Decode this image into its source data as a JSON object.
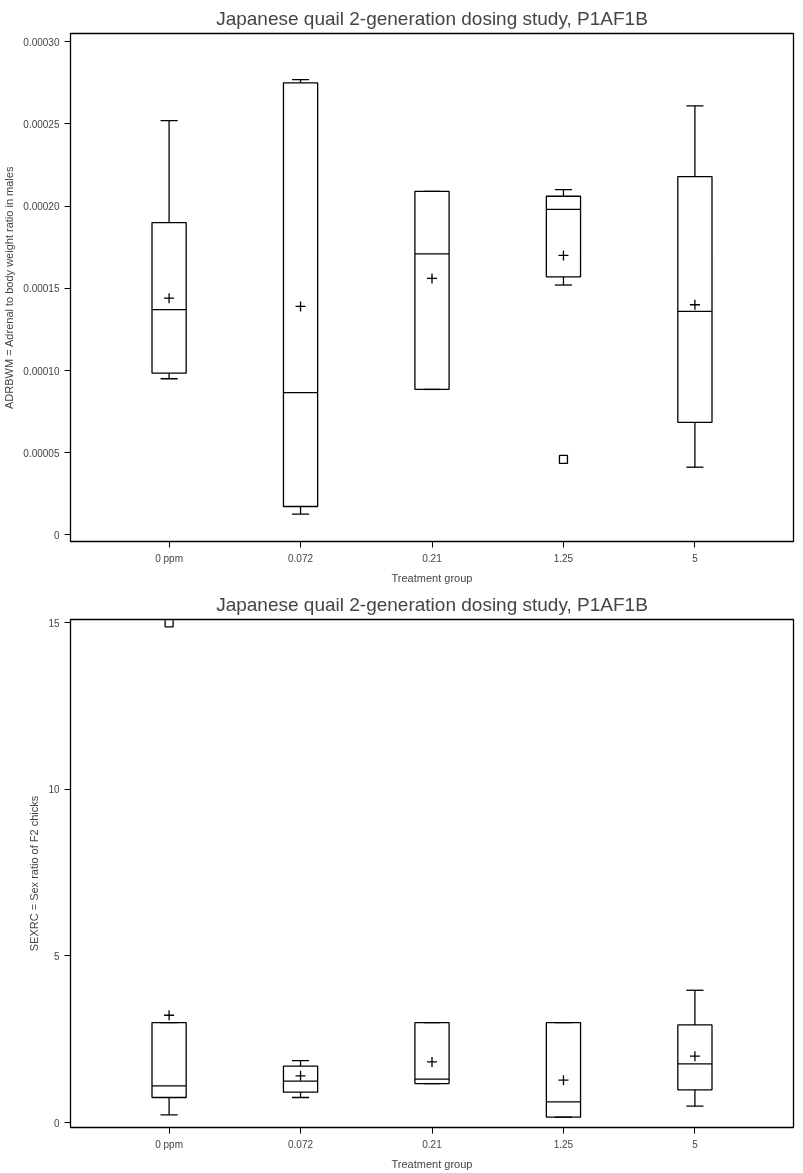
{
  "chart_data": [
    {
      "type": "box",
      "title": "Japanese quail 2-generation dosing study, P1AF1B",
      "xlabel": "Treatment group",
      "ylabel": "ADRBWM = Adrenal to body weight ratio in males",
      "categories": [
        "0 ppm",
        "0.072",
        "0.21",
        "1.25",
        "5"
      ],
      "boxes": [
        {
          "low": 9.5e-05,
          "q1": 9.84e-05,
          "median": 0.000137,
          "q3": 0.00019,
          "high": 0.000252,
          "mean": 0.000144
        },
        {
          "low": 1.26e-05,
          "q1": 1.73e-05,
          "median": 8.65e-05,
          "q3": 0.000275,
          "high": 0.000277,
          "mean": 0.000139
        },
        {
          "low": 8.85e-05,
          "q1": 8.85e-05,
          "median": 0.000171,
          "q3": 0.000209,
          "high": 0.000209,
          "mean": 0.000156
        },
        {
          "low": 0.000152,
          "q1": 0.000157,
          "median": 0.000198,
          "q3": 0.000206,
          "high": 0.00021,
          "mean": 0.00017,
          "outliers": [
            4.59e-05
          ]
        },
        {
          "low": 4.12e-05,
          "q1": 6.85e-05,
          "median": 0.000136,
          "q3": 0.000218,
          "high": 0.000261,
          "mean": 0.00014
        }
      ],
      "ylim": [
        -4e-06,
        0.000305
      ],
      "yticks": [
        0,
        {
          "value": 5e-05,
          "label": "0.00005"
        },
        {
          "value": 0.0001,
          "label": "0.00010"
        },
        {
          "value": 0.00015,
          "label": "0.00015"
        },
        {
          "value": 0.0002,
          "label": "0.00020"
        },
        {
          "value": 0.00025,
          "label": "0.00025"
        },
        {
          "value": 0.0003,
          "label": "0.00030"
        }
      ]
    },
    {
      "type": "box",
      "title": "Japanese quail 2-generation dosing study, P1AF1B",
      "xlabel": "Treatment group",
      "ylabel": "SEXRC = Sex ratio of F2 chicks",
      "categories": [
        "0 ppm",
        "0.072",
        "0.21",
        "1.25",
        "5"
      ],
      "boxes": [
        {
          "low": 0.23,
          "q1": 0.75,
          "median": 1.1,
          "q3": 3.0,
          "high": 3.0,
          "mean": 3.22,
          "outliers": [
            15.0
          ]
        },
        {
          "low": 0.75,
          "q1": 0.91,
          "median": 1.24,
          "q3": 1.69,
          "high": 1.86,
          "mean": 1.4
        },
        {
          "low": 1.17,
          "q1": 1.17,
          "median": 1.3,
          "q3": 3.0,
          "high": 3.0,
          "mean": 1.82
        },
        {
          "low": 0.16,
          "q1": 0.16,
          "median": 0.62,
          "q3": 3.0,
          "high": 3.0,
          "mean": 1.27
        },
        {
          "low": 0.49,
          "q1": 0.98,
          "median": 1.76,
          "q3": 2.93,
          "high": 3.97,
          "mean": 1.99
        }
      ],
      "ylim": [
        -0.15,
        15.1
      ],
      "yticks": [
        0,
        5,
        10,
        15
      ]
    }
  ]
}
